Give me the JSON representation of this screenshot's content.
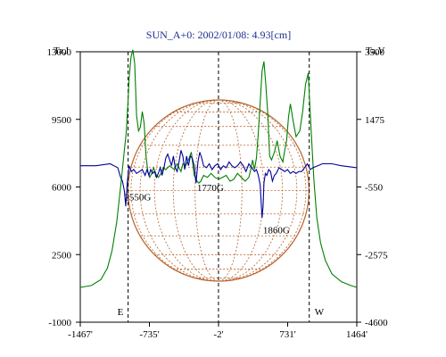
{
  "chart_data": {
    "type": "line",
    "title": "SUN_A+0: 2002/01/08: 4.93[cm]",
    "left_axis_label": "Ta,I",
    "right_axis_label": "Ta,V",
    "x_ticks": [
      "-1467'",
      "-735'",
      "-2'",
      "731'",
      "1464'"
    ],
    "x_range": [
      -1467,
      1464
    ],
    "y_left_ticks": [
      "13000",
      "9500",
      "6000",
      "2500",
      "-1000"
    ],
    "y_left_range": [
      -1000,
      13000
    ],
    "y_right_ticks": [
      "3500",
      "1475",
      "-550",
      "-2575",
      "-4600"
    ],
    "y_right_range": [
      -4600,
      3500
    ],
    "grid": false,
    "limb_markers": [
      {
        "label": "E",
        "x": -960
      },
      {
        "label": "W",
        "x": 960
      }
    ],
    "center_marker_x": -2,
    "solar_disk": {
      "radius_arcmin": 960,
      "color": "#b8642e"
    },
    "annotations": [
      {
        "text": "2550G",
        "x": -1000,
        "y_left": 5300
      },
      {
        "text": "1770G",
        "x": -230,
        "y_left": 5800
      },
      {
        "text": "1860G",
        "x": 470,
        "y_left": 3600
      }
    ],
    "series": [
      {
        "axis": "left",
        "color": "#008000",
        "x": [
          -1467,
          -1350,
          -1250,
          -1180,
          -1130,
          -1080,
          -1040,
          -1000,
          -980,
          -960,
          -950,
          -930,
          -910,
          -890,
          -870,
          -850,
          -830,
          -810,
          -790,
          -770,
          -750,
          -730,
          -710,
          -690,
          -660,
          -640,
          -610,
          -590,
          -560,
          -520,
          -470,
          -440,
          -420,
          -400,
          -380,
          -350,
          -320,
          -290,
          -260,
          -230,
          -210,
          -190,
          -160,
          -120,
          -80,
          -40,
          0,
          40,
          80,
          120,
          160,
          200,
          240,
          280,
          320,
          340,
          360,
          380,
          400,
          420,
          440,
          460,
          480,
          500,
          520,
          540,
          560,
          590,
          620,
          650,
          680,
          700,
          720,
          740,
          760,
          790,
          820,
          860,
          890,
          920,
          950,
          960,
          975,
          990,
          1010,
          1040,
          1080,
          1130,
          1200,
          1300,
          1400,
          1464
        ],
        "values": [
          800,
          900,
          1200,
          1800,
          2700,
          4200,
          6000,
          7900,
          8800,
          10500,
          11600,
          12700,
          13100,
          12400,
          9700,
          8900,
          9100,
          9900,
          9300,
          7600,
          6800,
          6500,
          6700,
          7000,
          6600,
          6500,
          6700,
          7000,
          6900,
          7100,
          6900,
          7200,
          7000,
          6800,
          7200,
          7100,
          7400,
          7800,
          6600,
          6300,
          6200,
          6300,
          6600,
          6500,
          6700,
          6500,
          6400,
          6500,
          6600,
          6300,
          6400,
          6700,
          6500,
          6300,
          6500,
          6900,
          7400,
          6900,
          7500,
          8800,
          10400,
          12000,
          12500,
          11300,
          9800,
          7600,
          7400,
          7800,
          8400,
          7600,
          7300,
          7900,
          8400,
          9600,
          10300,
          9400,
          8600,
          8900,
          9900,
          11300,
          11900,
          10800,
          9400,
          8000,
          6300,
          4400,
          3100,
          2200,
          1500,
          1100,
          900,
          800
        ]
      },
      {
        "axis": "left",
        "color": "#000099",
        "x": [
          -1467,
          -1300,
          -1150,
          -1070,
          -1040,
          -1020,
          -1000,
          -985,
          -970,
          -950,
          -925,
          -900,
          -870,
          -840,
          -810,
          -780,
          -760,
          -740,
          -720,
          -700,
          -680,
          -660,
          -640,
          -620,
          -600,
          -580,
          -560,
          -540,
          -520,
          -500,
          -480,
          -460,
          -440,
          -420,
          -400,
          -380,
          -360,
          -340,
          -320,
          -300,
          -280,
          -260,
          -240,
          -220,
          -200,
          -180,
          -160,
          -130,
          -100,
          -70,
          -40,
          -10,
          20,
          50,
          80,
          110,
          140,
          170,
          200,
          230,
          260,
          290,
          320,
          350,
          380,
          400,
          420,
          440,
          450,
          460,
          470,
          480,
          495,
          510,
          530,
          550,
          570,
          590,
          610,
          640,
          670,
          700,
          730,
          760,
          790,
          820,
          850,
          880,
          910,
          940,
          970,
          1000,
          1050,
          1100,
          1200,
          1300,
          1464
        ],
        "values": [
          7100,
          7100,
          7200,
          7000,
          6500,
          6300,
          5800,
          5000,
          6200,
          7100,
          6800,
          6900,
          6700,
          6800,
          6900,
          6600,
          6900,
          6600,
          6900,
          6700,
          6800,
          6500,
          6700,
          7000,
          6600,
          7000,
          7500,
          7700,
          7400,
          7100,
          7600,
          7000,
          6800,
          7300,
          7900,
          7600,
          6900,
          7600,
          7100,
          7600,
          7500,
          7100,
          6200,
          7300,
          7800,
          7500,
          7100,
          7000,
          7200,
          6900,
          7100,
          7200,
          6900,
          7100,
          7000,
          7300,
          7100,
          7000,
          7100,
          7300,
          7100,
          6800,
          7200,
          7000,
          6800,
          6900,
          6600,
          6100,
          5200,
          4400,
          5000,
          6200,
          6700,
          6600,
          6900,
          6800,
          6300,
          6600,
          6700,
          7000,
          6900,
          6800,
          6900,
          6700,
          6800,
          6700,
          6800,
          6800,
          7000,
          7200,
          6900,
          7000,
          7100,
          7200,
          7200,
          7100,
          7000
        ]
      }
    ]
  }
}
